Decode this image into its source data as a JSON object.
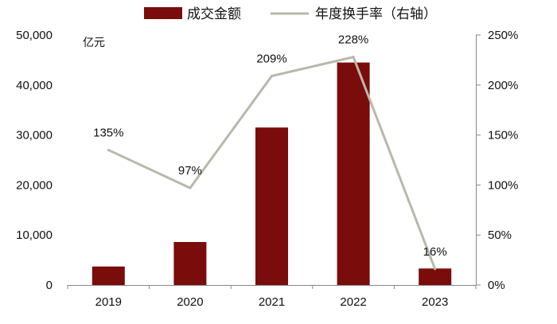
{
  "chart_data": {
    "type": "bar",
    "categories": [
      "2019",
      "2020",
      "2021",
      "2022",
      "2023"
    ],
    "y_unit": "亿元",
    "ylim": [
      0,
      50000
    ],
    "y_ticks": [
      "0",
      "10,000",
      "20,000",
      "30,000",
      "40,000",
      "50,000"
    ],
    "y2lim": [
      0,
      250
    ],
    "y2_ticks": [
      "0%",
      "50%",
      "100%",
      "150%",
      "200%",
      "250%"
    ],
    "grid": false,
    "legend_position": "top",
    "series": [
      {
        "name": "成交金额",
        "type": "bar",
        "axis": "left",
        "color": "#7a0c0c",
        "values": [
          3700,
          8600,
          31500,
          44500,
          3300
        ]
      },
      {
        "name": "年度换手率（右轴）",
        "type": "line",
        "axis": "right",
        "color": "#b9b8a9",
        "values": [
          135,
          97,
          209,
          228,
          16
        ],
        "labels": [
          "135%",
          "97%",
          "209%",
          "228%",
          "16%"
        ]
      }
    ]
  }
}
